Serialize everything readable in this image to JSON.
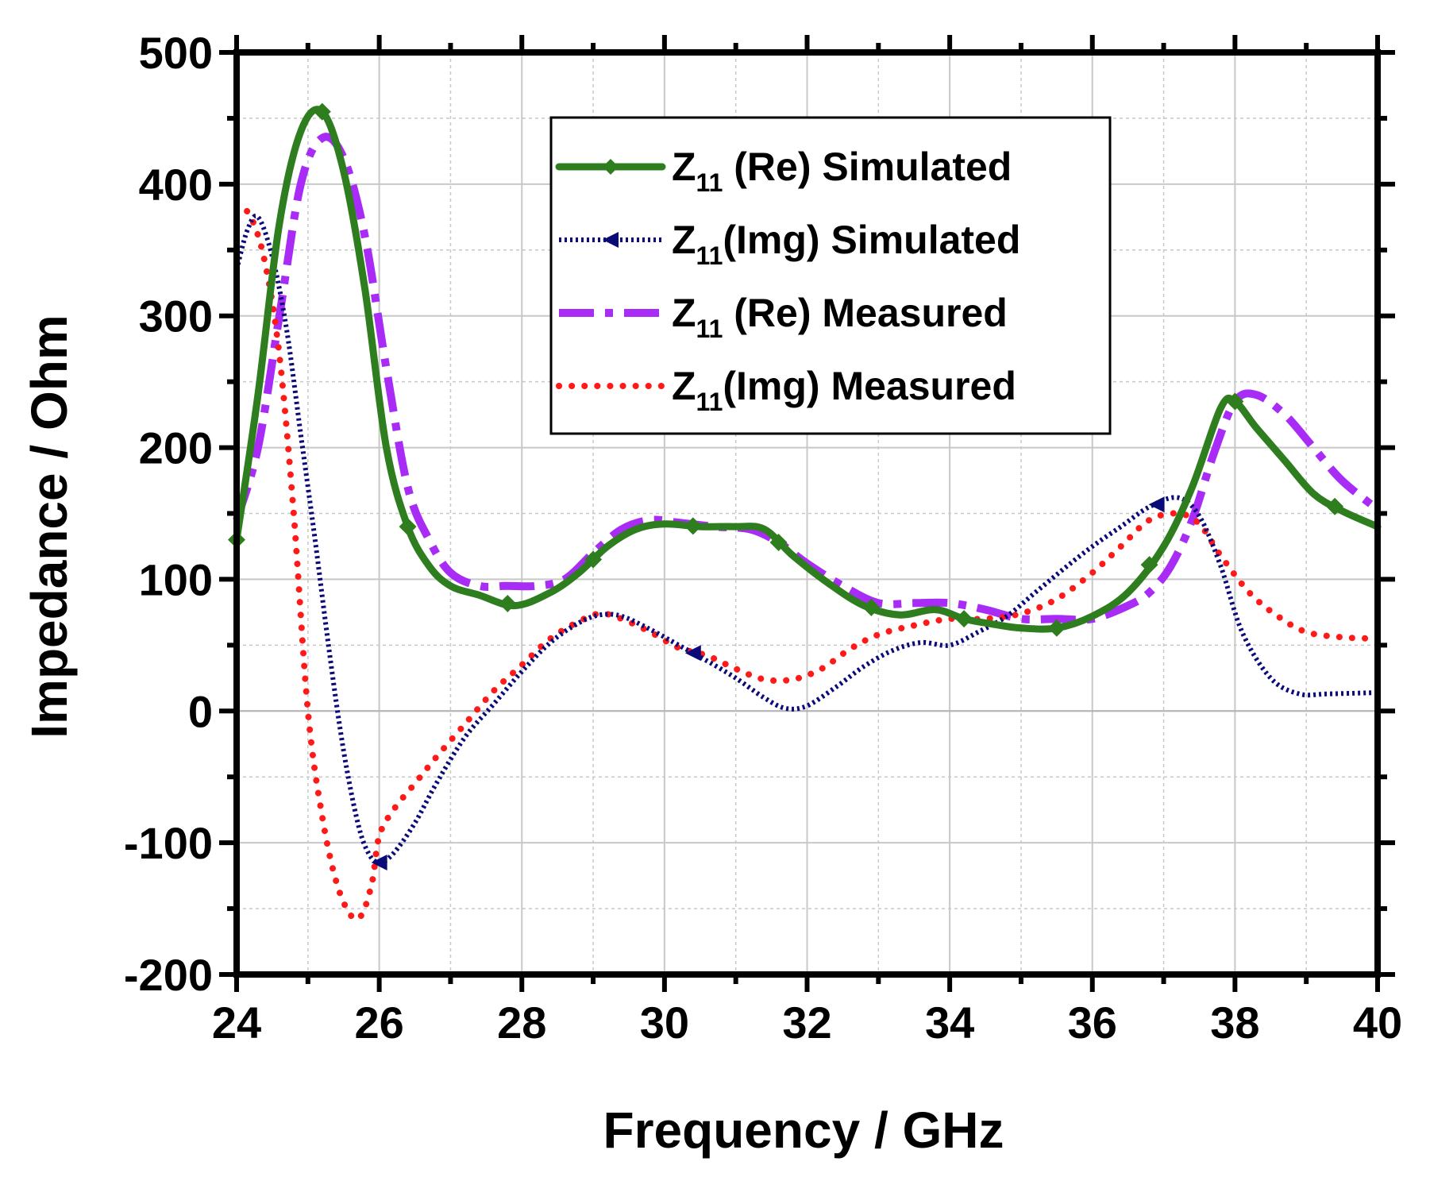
{
  "chart_data": {
    "type": "line",
    "title": "",
    "xlabel": "Frequency / GHz",
    "ylabel": "Impedance / Ohm",
    "xlim": [
      24,
      40
    ],
    "ylim": [
      -200,
      500
    ],
    "xticks": [
      "24",
      "26",
      "28",
      "30",
      "32",
      "34",
      "36",
      "38",
      "40"
    ],
    "yticks": [
      "500",
      "400",
      "300",
      "200",
      "100",
      "0",
      "-100",
      "-200"
    ],
    "grid": true,
    "legend_position": "top-center",
    "series": [
      {
        "name": "Z11 (Re) Simulated",
        "label_main": "Z",
        "label_sub": "11",
        "label_rest": " (Re) Simulated",
        "color": "#2e7d1e",
        "style": "solid-diamond",
        "x": [
          24,
          24.3,
          24.6,
          24.9,
          25.2,
          25.5,
          25.8,
          26.1,
          26.4,
          26.7,
          27.0,
          27.4,
          27.9,
          28.4,
          28.8,
          29.2,
          29.6,
          30.0,
          30.5,
          31.0,
          31.4,
          31.8,
          32.3,
          32.8,
          33.3,
          33.8,
          34.2,
          34.6,
          35.0,
          35.5,
          36.0,
          36.5,
          37.0,
          37.4,
          37.8,
          38.0,
          38.3,
          38.7,
          39.1,
          39.5,
          40.0
        ],
        "y": [
          130,
          240,
          370,
          440,
          455,
          410,
          320,
          200,
          140,
          110,
          95,
          88,
          80,
          90,
          105,
          125,
          138,
          142,
          140,
          140,
          138,
          118,
          97,
          80,
          73,
          77,
          70,
          66,
          63,
          63,
          72,
          90,
          125,
          170,
          230,
          235,
          215,
          190,
          165,
          152,
          140
        ]
      },
      {
        "name": "Z11(Img) Simulated",
        "label_main": "Z",
        "label_sub": "11",
        "label_rest": "(Img) Simulated",
        "color": "#0a0a78",
        "style": "dotted-triangle",
        "x": [
          24,
          24.15,
          24.3,
          24.5,
          24.7,
          24.9,
          25.1,
          25.3,
          25.5,
          25.7,
          25.85,
          26.0,
          26.2,
          26.5,
          26.8,
          27.2,
          27.6,
          28.0,
          28.4,
          28.8,
          29.1,
          29.4,
          29.8,
          30.2,
          30.6,
          31.0,
          31.4,
          31.7,
          32.0,
          32.4,
          32.8,
          33.2,
          33.6,
          34.0,
          34.4,
          34.8,
          35.2,
          35.6,
          36.0,
          36.4,
          36.8,
          37.2,
          37.5,
          37.8,
          38.1,
          38.5,
          38.9,
          39.3,
          40.0
        ],
        "y": [
          335,
          365,
          375,
          345,
          290,
          210,
          130,
          45,
          -30,
          -85,
          -108,
          -115,
          -108,
          -85,
          -55,
          -20,
          5,
          30,
          52,
          67,
          73,
          72,
          62,
          50,
          38,
          25,
          10,
          2,
          4,
          18,
          34,
          46,
          52,
          50,
          60,
          72,
          90,
          108,
          125,
          140,
          155,
          162,
          148,
          110,
          60,
          25,
          13,
          13,
          14
        ]
      },
      {
        "name": "Z11 (Re) Measured",
        "label_main": "Z",
        "label_sub": "11",
        "label_rest": " (Re) Measured",
        "color": "#a82cf5",
        "style": "dash-dot",
        "x": [
          24,
          24.3,
          24.6,
          24.9,
          25.2,
          25.5,
          25.8,
          26.1,
          26.4,
          26.7,
          27.0,
          27.4,
          27.8,
          28.2,
          28.6,
          29.0,
          29.4,
          29.8,
          30.2,
          30.7,
          31.2,
          31.6,
          32.0,
          32.5,
          33.0,
          33.5,
          34.0,
          34.5,
          35.0,
          35.5,
          36.0,
          36.5,
          36.8,
          37.1,
          37.4,
          37.7,
          38.0,
          38.3,
          38.7,
          39.1,
          39.5,
          40.0
        ],
        "y": [
          145,
          200,
          300,
          400,
          435,
          420,
          360,
          260,
          170,
          130,
          105,
          95,
          95,
          95,
          100,
          120,
          138,
          145,
          143,
          140,
          138,
          128,
          112,
          95,
          82,
          82,
          82,
          77,
          70,
          70,
          70,
          80,
          90,
          110,
          145,
          195,
          235,
          240,
          225,
          200,
          175,
          153
        ]
      },
      {
        "name": "Z11(Img) Measured",
        "label_main": "Z",
        "label_sub": "11",
        "label_rest": "(Img) Measured",
        "color": "#ff1a1a",
        "style": "dotted",
        "x": [
          24,
          24.2,
          24.4,
          24.6,
          24.8,
          25.0,
          25.2,
          25.4,
          25.6,
          25.75,
          25.9,
          26.0,
          26.2,
          26.5,
          26.8,
          27.2,
          27.6,
          28.0,
          28.4,
          28.8,
          29.1,
          29.4,
          29.8,
          30.2,
          30.6,
          31.0,
          31.4,
          31.8,
          32.2,
          32.6,
          33.0,
          33.5,
          34.0,
          34.5,
          35.0,
          35.5,
          36.0,
          36.4,
          36.8,
          37.2,
          37.5,
          37.8,
          38.2,
          38.6,
          39.0,
          39.5,
          40.0
        ],
        "y": [
          385,
          375,
          340,
          270,
          150,
          0,
          -80,
          -130,
          -155,
          -155,
          -130,
          -95,
          -75,
          -55,
          -35,
          -10,
          15,
          35,
          55,
          68,
          74,
          70,
          60,
          48,
          42,
          32,
          24,
          24,
          32,
          47,
          58,
          65,
          70,
          70,
          74,
          85,
          105,
          125,
          145,
          150,
          142,
          118,
          90,
          72,
          60,
          56,
          55
        ]
      }
    ]
  }
}
